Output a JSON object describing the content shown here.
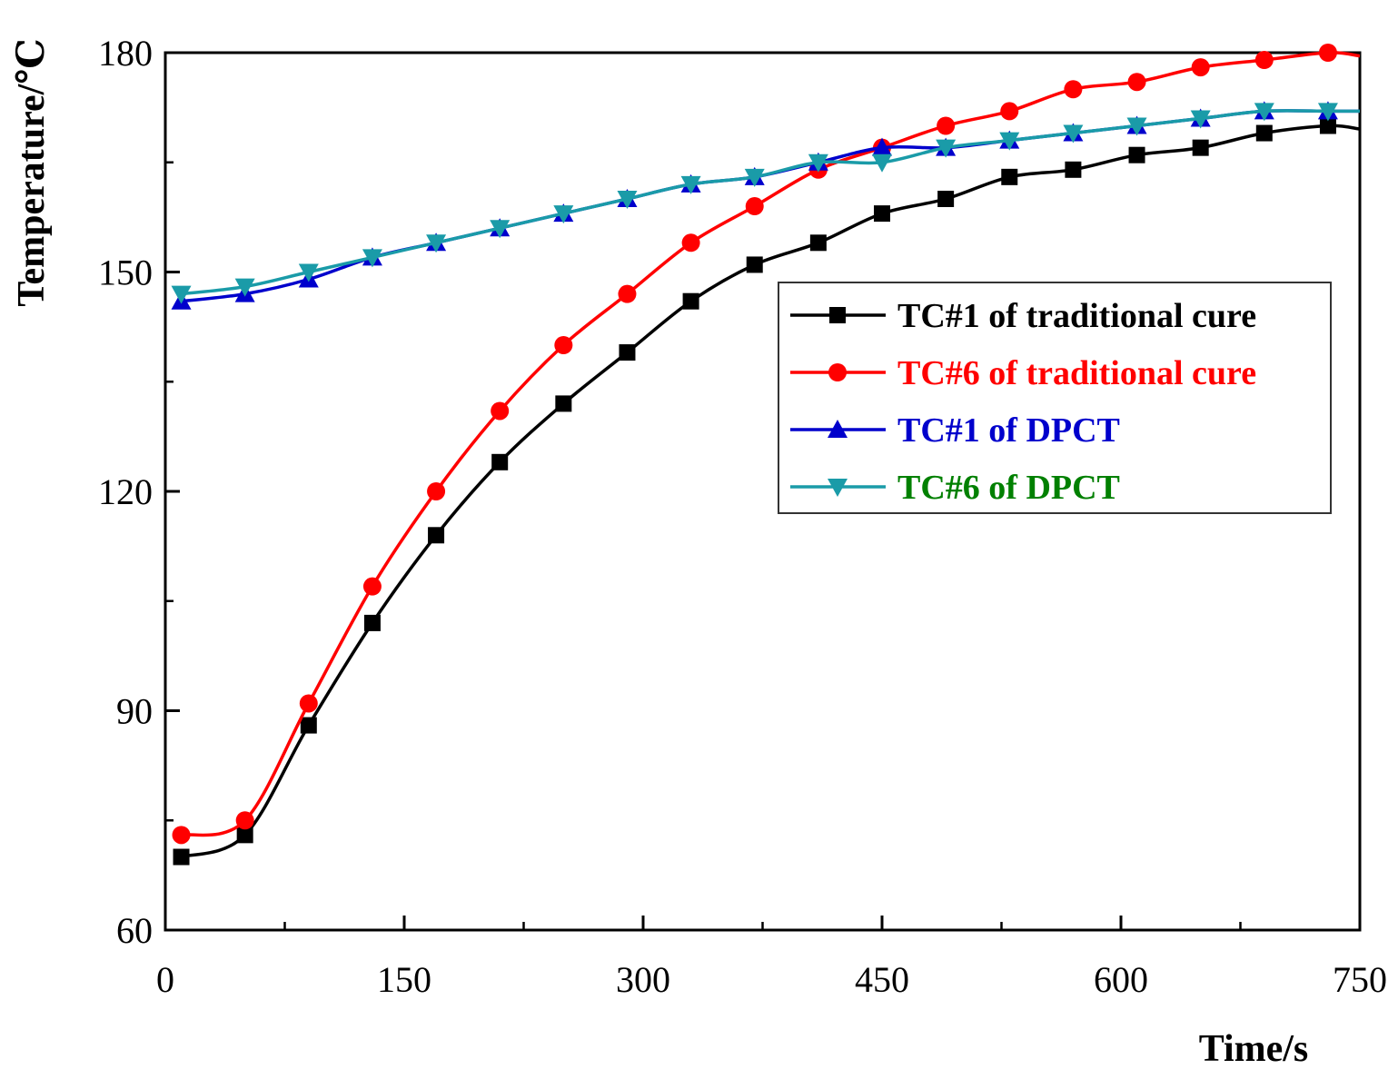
{
  "chart_data": {
    "type": "line",
    "title": "",
    "xlabel": "Time/s",
    "ylabel": "Temperature/℃",
    "xlim": [
      0,
      750
    ],
    "ylim": [
      60,
      180
    ],
    "xticks": [
      0,
      150,
      300,
      450,
      600,
      750
    ],
    "yticks": [
      60,
      90,
      120,
      150,
      180
    ],
    "x_minor_step": 75,
    "y_minor_step": 15,
    "grid": false,
    "legend_position": "center-right",
    "series": [
      {
        "name": "TC#1 of traditional cure",
        "color": "#000000",
        "text_color": "#000000",
        "marker": "square",
        "x": [
          10,
          50,
          90,
          130,
          170,
          210,
          250,
          290,
          330,
          370,
          410,
          450,
          490,
          530,
          570,
          610,
          650,
          690,
          730
        ],
        "values": [
          70,
          73,
          88,
          102,
          114,
          124,
          132,
          139,
          146,
          151,
          154,
          158,
          160,
          163,
          164,
          166,
          167,
          169,
          170
        ]
      },
      {
        "name": "TC#6 of traditional cure",
        "color": "#ff0000",
        "text_color": "#ff0000",
        "marker": "circle",
        "x": [
          10,
          50,
          90,
          130,
          170,
          210,
          250,
          290,
          330,
          370,
          410,
          450,
          490,
          530,
          570,
          610,
          650,
          690,
          730
        ],
        "values": [
          73,
          75,
          91,
          107,
          120,
          131,
          140,
          147,
          154,
          159,
          164,
          167,
          170,
          172,
          175,
          176,
          178,
          179,
          180
        ]
      },
      {
        "name": "TC#1 of DPCT",
        "color": "#0000cc",
        "text_color": "#0000cc",
        "marker": "triangle-up",
        "x": [
          10,
          50,
          90,
          130,
          170,
          210,
          250,
          290,
          330,
          370,
          410,
          450,
          490,
          530,
          570,
          610,
          650,
          690,
          730
        ],
        "values": [
          146,
          147,
          149,
          152,
          154,
          156,
          158,
          160,
          162,
          163,
          165,
          167,
          167,
          168,
          169,
          170,
          171,
          172,
          172
        ]
      },
      {
        "name": "TC#6 of DPCT",
        "color": "#1a9ba8",
        "text_color": "#008000",
        "marker": "triangle-down",
        "x": [
          10,
          50,
          90,
          130,
          170,
          210,
          250,
          290,
          330,
          370,
          410,
          450,
          490,
          530,
          570,
          610,
          650,
          690,
          730
        ],
        "values": [
          147,
          148,
          150,
          152,
          154,
          156,
          158,
          160,
          162,
          163,
          165,
          165,
          167,
          168,
          169,
          170,
          171,
          172,
          172
        ]
      }
    ]
  }
}
